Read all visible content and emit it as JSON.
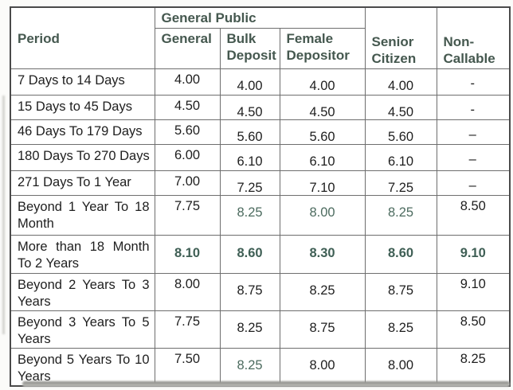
{
  "table": {
    "header": {
      "period": "Period",
      "general_public": "General Public",
      "sub": [
        "General",
        "Bulk Deposit",
        "Female Depositor"
      ],
      "senior_citizen": "Senior Citizen",
      "non_callable": "Non-Callable"
    },
    "rows": [
      {
        "period": "7 Days  to 14 Days",
        "nowrap": true,
        "cells": [
          {
            "v": "4.00"
          },
          {
            "v": "4.00"
          },
          {
            "v": "4.00"
          },
          {
            "v": "4.00"
          },
          {
            "v": "-",
            "dash": true
          }
        ]
      },
      {
        "period": "15 Days to 45 Days",
        "nowrap": true,
        "cells": [
          {
            "v": "4.50"
          },
          {
            "v": "4.50"
          },
          {
            "v": "4.50"
          },
          {
            "v": "4.50"
          },
          {
            "v": "-",
            "dash": true
          }
        ]
      },
      {
        "period": "46 Days To 179 Days",
        "nowrap": true,
        "cells": [
          {
            "v": "5.60"
          },
          {
            "v": "5.60"
          },
          {
            "v": "5.60"
          },
          {
            "v": "5.60"
          },
          {
            "v": "–",
            "dash": true
          }
        ]
      },
      {
        "period": "180 Days To 270 Days",
        "nowrap": true,
        "cells": [
          {
            "v": "6.00"
          },
          {
            "v": "6.10"
          },
          {
            "v": "6.10"
          },
          {
            "v": "6.10"
          },
          {
            "v": "–",
            "dash": true
          }
        ]
      },
      {
        "period": "271 Days To 1 Year",
        "nowrap": true,
        "cells": [
          {
            "v": "7.00"
          },
          {
            "v": "7.25"
          },
          {
            "v": "7.10"
          },
          {
            "v": "7.25"
          },
          {
            "v": "–",
            "dash": true
          }
        ]
      },
      {
        "period": "Beyond 1 Year To 18 Month",
        "cells": [
          {
            "v": "7.75"
          },
          {
            "v": "8.25",
            "teal": true
          },
          {
            "v": "8.00",
            "teal": true
          },
          {
            "v": "8.25",
            "teal": true
          },
          {
            "v": "8.50"
          }
        ]
      },
      {
        "period": "More than 18 Month To 2 Years",
        "em": true,
        "cells": [
          {
            "v": "8.10",
            "teal": true,
            "bold": true
          },
          {
            "v": "8.60",
            "teal": true,
            "bold": true
          },
          {
            "v": "8.30",
            "teal": true,
            "bold": true
          },
          {
            "v": "8.60",
            "teal": true,
            "bold": true
          },
          {
            "v": "9.10",
            "teal": true,
            "bold": true
          }
        ]
      },
      {
        "period": "Beyond 2 Years To 3 Years",
        "cells": [
          {
            "v": "8.00"
          },
          {
            "v": "8.75"
          },
          {
            "v": "8.25"
          },
          {
            "v": "8.75"
          },
          {
            "v": "9.10"
          }
        ]
      },
      {
        "period": "Beyond 3 Years To 5 Years",
        "cells": [
          {
            "v": "7.75"
          },
          {
            "v": "8.25"
          },
          {
            "v": "8.75"
          },
          {
            "v": "8.25"
          },
          {
            "v": "8.50"
          }
        ]
      },
      {
        "period": "Beyond 5 Years To 10 Years",
        "cells": [
          {
            "v": "7.50"
          },
          {
            "v": "8.25",
            "teal": true
          },
          {
            "v": "8.00"
          },
          {
            "v": "8.00"
          },
          {
            "v": "8.25"
          }
        ]
      }
    ]
  },
  "colors": {
    "header_text": "#45584f",
    "body_text": "#1e1e1e",
    "teal_value": "#4c6b5f",
    "teal_bold_value": "#3f5f55",
    "border_inner": "#6e6e6e",
    "border_outer": "#4a4a4a"
  }
}
